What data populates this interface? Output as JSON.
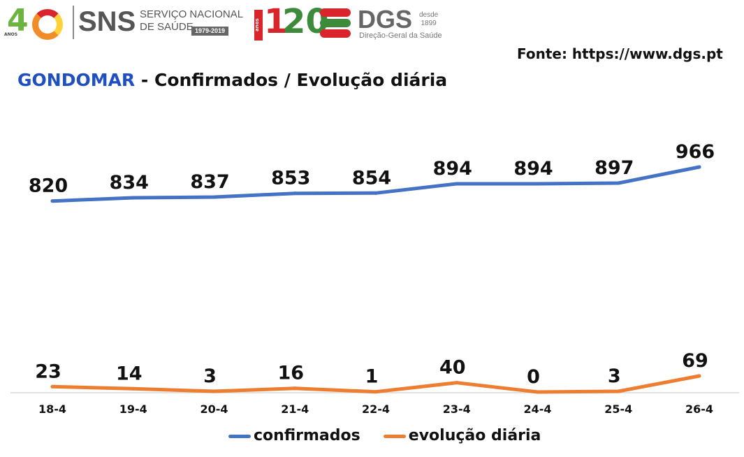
{
  "header": {
    "logo_40": {
      "number": "4",
      "years_word": "ANOS"
    },
    "sns": {
      "abbr": "SNS",
      "line1": "SERVIÇO NACIONAL",
      "line2": "DE SAÚDE",
      "years": "1979-2019"
    },
    "logo_120": {
      "years_word": "anos",
      "one": "1",
      "twenty": "20"
    },
    "dgs": {
      "abbr": "DGS",
      "since_word": "desde",
      "since_year": "1899",
      "name": "Direção-Geral da Saúde"
    }
  },
  "source": "Fonte: https://www.dgs.pt",
  "title": {
    "place": "GONDOMAR",
    "rest": " - Confirmados / Evolução diária"
  },
  "colors": {
    "confirmados": "#4472c4",
    "evolucao": "#ed7d31",
    "title_place": "#1f4fc1",
    "axis": "#d9d9d9"
  },
  "chart_data": {
    "type": "line",
    "categories": [
      "18-4",
      "19-4",
      "20-4",
      "21-4",
      "22-4",
      "23-4",
      "24-4",
      "25-4",
      "26-4"
    ],
    "series": [
      {
        "name": "confirmados",
        "values": [
          820,
          834,
          837,
          853,
          854,
          894,
          894,
          897,
          966
        ]
      },
      {
        "name": "evolução diária",
        "values": [
          23,
          14,
          3,
          16,
          1,
          40,
          0,
          3,
          69
        ]
      }
    ],
    "data_labels": true,
    "grid": false,
    "legend_position": "bottom"
  }
}
